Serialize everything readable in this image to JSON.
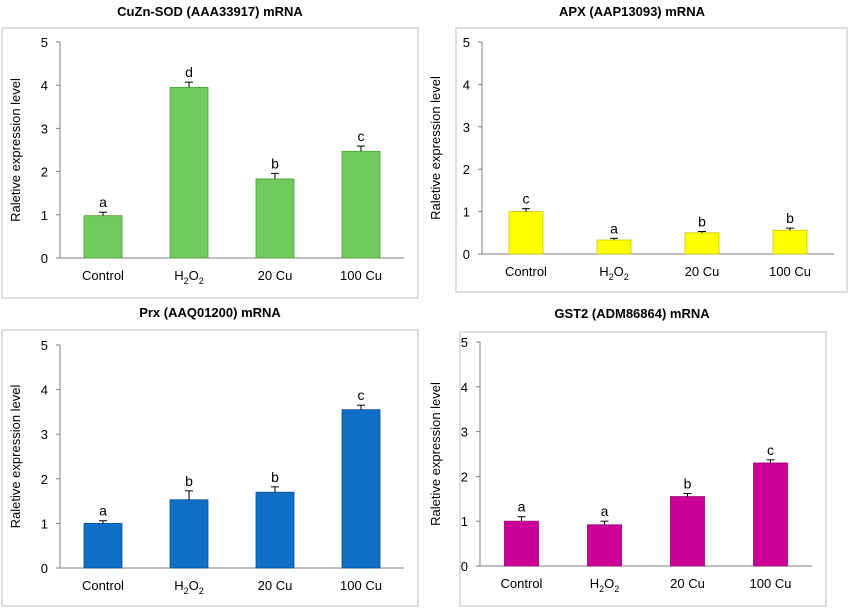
{
  "chart_data": [
    {
      "type": "bar",
      "title": "CuZn-SOD (AAA33917) mRNA",
      "ylabel": "Raletive expression level",
      "xlabel": "",
      "ylim": [
        0,
        5
      ],
      "yticks": [
        "0",
        "1",
        "2",
        "3",
        "4",
        "5"
      ],
      "categories": [
        {
          "pre": "Control",
          "sub": "",
          "post": ""
        },
        {
          "pre": "H",
          "sub": "2",
          "post": "O",
          "sub2": "2"
        },
        {
          "pre": "20 Cu",
          "sub": "",
          "post": ""
        },
        {
          "pre": "100 Cu",
          "sub": "",
          "post": ""
        }
      ],
      "values": [
        0.98,
        3.95,
        1.83,
        2.47
      ],
      "errors": [
        0.08,
        0.12,
        0.13,
        0.12
      ],
      "significance": [
        "a",
        "d",
        "b",
        "c"
      ],
      "color": "#70c95b",
      "edge": "#4fa23b"
    },
    {
      "type": "bar",
      "title": "APX (AAP13093) mRNA",
      "ylabel": "Raletive expression level",
      "xlabel": "",
      "ylim": [
        0,
        5
      ],
      "yticks": [
        "0",
        "1",
        "2",
        "3",
        "4",
        "5"
      ],
      "categories": [
        {
          "pre": "Control",
          "sub": "",
          "post": ""
        },
        {
          "pre": "H",
          "sub": "2",
          "post": "O",
          "sub2": "2"
        },
        {
          "pre": "20 Cu",
          "sub": "",
          "post": ""
        },
        {
          "pre": "100 Cu",
          "sub": "",
          "post": ""
        }
      ],
      "values": [
        1.0,
        0.33,
        0.5,
        0.56
      ],
      "errors": [
        0.07,
        0.04,
        0.03,
        0.05
      ],
      "significance": [
        "c",
        "a",
        "b",
        "b"
      ],
      "color": "#ffff00",
      "edge": "#c8c800"
    },
    {
      "type": "bar",
      "title": "Prx (AAQ01200) mRNA",
      "ylabel": "Raletive expression level",
      "xlabel": "",
      "ylim": [
        0,
        5
      ],
      "yticks": [
        "0",
        "1",
        "2",
        "3",
        "4",
        "5"
      ],
      "categories": [
        {
          "pre": "Control",
          "sub": "",
          "post": ""
        },
        {
          "pre": "H",
          "sub": "2",
          "post": "O",
          "sub2": "2"
        },
        {
          "pre": "20 Cu",
          "sub": "",
          "post": ""
        },
        {
          "pre": "100 Cu",
          "sub": "",
          "post": ""
        }
      ],
      "values": [
        1.0,
        1.53,
        1.7,
        3.55
      ],
      "errors": [
        0.06,
        0.2,
        0.12,
        0.1
      ],
      "significance": [
        "a",
        "b",
        "b",
        "c"
      ],
      "color": "#0f6fc6",
      "edge": "#0a4f90"
    },
    {
      "type": "bar",
      "title": "GST2 (ADM86864) mRNA",
      "ylabel": "Raletive expression level",
      "xlabel": "",
      "ylim": [
        0,
        5
      ],
      "yticks": [
        "0",
        "1",
        "2",
        "3",
        "4",
        "5"
      ],
      "categories": [
        {
          "pre": "Control",
          "sub": "",
          "post": ""
        },
        {
          "pre": "H",
          "sub": "2",
          "post": "O",
          "sub2": "2"
        },
        {
          "pre": "20 Cu",
          "sub": "",
          "post": ""
        },
        {
          "pre": "100 Cu",
          "sub": "",
          "post": ""
        }
      ],
      "values": [
        1.0,
        0.92,
        1.55,
        2.3
      ],
      "errors": [
        0.1,
        0.08,
        0.07,
        0.07
      ],
      "significance": [
        "a",
        "a",
        "b",
        "c"
      ],
      "color": "#cc0099",
      "edge": "#99006f"
    }
  ]
}
